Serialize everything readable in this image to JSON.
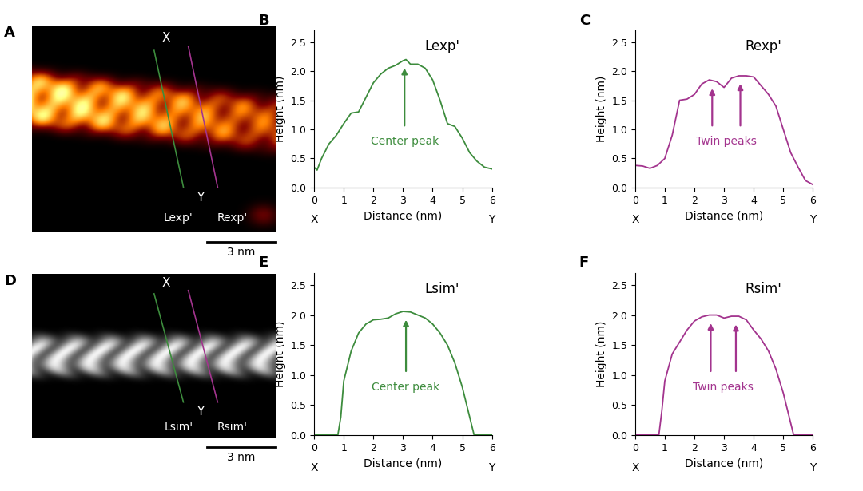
{
  "chart_data": [
    {
      "type": "line",
      "panel": "B",
      "title": "Lexp'",
      "xlabel": "Distance (nm)",
      "ylabel": "Height (nm)",
      "x_start_label": "X",
      "x_end_label": "Y",
      "annotations": [
        {
          "text": "Center peak",
          "peaks": [
            3.05
          ]
        }
      ],
      "x": [
        0,
        0.1,
        0.25,
        0.5,
        0.75,
        1.0,
        1.25,
        1.5,
        1.75,
        2.0,
        2.25,
        2.5,
        2.75,
        3.0,
        3.1,
        3.25,
        3.5,
        3.75,
        4.0,
        4.25,
        4.5,
        4.75,
        5.0,
        5.25,
        5.5,
        5.75,
        6.0
      ],
      "series": [
        {
          "name": "Lexp'",
          "color": "#3d8c3d",
          "values": [
            0.35,
            0.3,
            0.5,
            0.75,
            0.9,
            1.1,
            1.28,
            1.3,
            1.55,
            1.8,
            1.95,
            2.05,
            2.1,
            2.18,
            2.2,
            2.12,
            2.12,
            2.05,
            1.85,
            1.5,
            1.1,
            1.05,
            0.85,
            0.6,
            0.45,
            0.35,
            0.32
          ]
        }
      ],
      "xlim": [
        0,
        6
      ],
      "xticks": [
        0,
        1,
        2,
        3,
        4,
        5,
        6
      ],
      "ylim": [
        0,
        2.7
      ],
      "yticks": [
        {
          "value": 0,
          "label": "0.0"
        },
        {
          "value": 0.5,
          "label": "0.5"
        },
        {
          "value": 1.0,
          "label": "1.0"
        },
        {
          "value": 1.5,
          "label": "1.5"
        },
        {
          "value": 2.0,
          "label": "2.0"
        },
        {
          "value": 2.5,
          "label": "2.5"
        }
      ]
    },
    {
      "type": "line",
      "panel": "C",
      "title": "Rexp'",
      "xlabel": "Distance (nm)",
      "ylabel": "Height (nm)",
      "x_start_label": "X",
      "x_end_label": "Y",
      "annotations": [
        {
          "text": "Twin peaks",
          "peaks": [
            2.6,
            3.55
          ]
        }
      ],
      "x": [
        0,
        0.25,
        0.5,
        0.75,
        1.0,
        1.25,
        1.5,
        1.75,
        2.0,
        2.25,
        2.5,
        2.75,
        3.0,
        3.25,
        3.5,
        3.75,
        4.0,
        4.25,
        4.5,
        4.75,
        5.0,
        5.25,
        5.5,
        5.75,
        6.0
      ],
      "series": [
        {
          "name": "Rexp'",
          "color": "#a3348e",
          "values": [
            0.38,
            0.37,
            0.33,
            0.38,
            0.5,
            0.9,
            1.5,
            1.52,
            1.6,
            1.78,
            1.85,
            1.82,
            1.72,
            1.88,
            1.92,
            1.92,
            1.9,
            1.75,
            1.6,
            1.4,
            1.0,
            0.6,
            0.35,
            0.12,
            0.05
          ]
        }
      ],
      "xlim": [
        0,
        6
      ],
      "xticks": [
        0,
        1,
        2,
        3,
        4,
        5,
        6
      ],
      "ylim": [
        0,
        2.7
      ],
      "yticks": [
        {
          "value": 0,
          "label": "0.0"
        },
        {
          "value": 0.5,
          "label": "0.5"
        },
        {
          "value": 1.0,
          "label": "1.0"
        },
        {
          "value": 1.5,
          "label": "1.5"
        },
        {
          "value": 2.0,
          "label": "2.0"
        },
        {
          "value": 2.5,
          "label": "2.5"
        }
      ]
    },
    {
      "type": "line",
      "panel": "E",
      "title": "Lsim'",
      "xlabel": "Distance (nm)",
      "ylabel": "Height (nm)",
      "x_start_label": "X",
      "x_end_label": "Y",
      "annotations": [
        {
          "text": "Center peak",
          "peaks": [
            3.1
          ]
        }
      ],
      "x": [
        0,
        0.8,
        0.9,
        1.0,
        1.25,
        1.5,
        1.75,
        2.0,
        2.25,
        2.5,
        2.75,
        3.0,
        3.25,
        3.5,
        3.75,
        4.0,
        4.25,
        4.5,
        4.75,
        5.0,
        5.25,
        5.4,
        6.0
      ],
      "series": [
        {
          "name": "Lsim'",
          "color": "#3d8c3d",
          "values": [
            0,
            0,
            0.3,
            0.9,
            1.4,
            1.7,
            1.85,
            1.92,
            1.93,
            1.95,
            2.02,
            2.06,
            2.05,
            2.0,
            1.95,
            1.85,
            1.7,
            1.5,
            1.2,
            0.8,
            0.3,
            0,
            0
          ]
        }
      ],
      "xlim": [
        0,
        6
      ],
      "xticks": [
        0,
        1,
        2,
        3,
        4,
        5,
        6
      ],
      "ylim": [
        0,
        2.7
      ],
      "yticks": [
        {
          "value": 0,
          "label": "0.0"
        },
        {
          "value": 0.5,
          "label": "0.5"
        },
        {
          "value": 1.0,
          "label": "1.0"
        },
        {
          "value": 1.5,
          "label": "1.5"
        },
        {
          "value": 2.0,
          "label": "2.0"
        },
        {
          "value": 2.5,
          "label": "2.5"
        }
      ]
    },
    {
      "type": "line",
      "panel": "F",
      "title": "Rsim'",
      "xlabel": "Distance (nm)",
      "ylabel": "Height (nm)",
      "x_start_label": "X",
      "x_end_label": "Y",
      "annotations": [
        {
          "text": "Twin peaks",
          "peaks": [
            2.55,
            3.4
          ]
        }
      ],
      "x": [
        0,
        0.8,
        0.9,
        1.0,
        1.25,
        1.5,
        1.75,
        2.0,
        2.25,
        2.5,
        2.75,
        3.0,
        3.25,
        3.5,
        3.75,
        4.0,
        4.25,
        4.5,
        4.75,
        5.0,
        5.25,
        5.35,
        6.0
      ],
      "series": [
        {
          "name": "Rsim'",
          "color": "#a3348e",
          "values": [
            0,
            0,
            0.4,
            0.9,
            1.35,
            1.55,
            1.75,
            1.9,
            1.97,
            2.0,
            2.0,
            1.95,
            1.98,
            1.98,
            1.92,
            1.75,
            1.6,
            1.4,
            1.1,
            0.7,
            0.2,
            0,
            0
          ]
        }
      ],
      "xlim": [
        0,
        6
      ],
      "xticks": [
        0,
        1,
        2,
        3,
        4,
        5,
        6
      ],
      "ylim": [
        0,
        2.7
      ],
      "yticks": [
        {
          "value": 0,
          "label": "0.0"
        },
        {
          "value": 0.5,
          "label": "0.5"
        },
        {
          "value": 1.0,
          "label": "1.0"
        },
        {
          "value": 1.5,
          "label": "1.5"
        },
        {
          "value": 2.0,
          "label": "2.0"
        },
        {
          "value": 2.5,
          "label": "2.5"
        }
      ]
    }
  ],
  "images": [
    {
      "panel": "A",
      "ends": [
        "X",
        "Y"
      ],
      "line_labels": [
        "Lexp'",
        "Rexp'"
      ],
      "line_colors": [
        "#3d8c3d",
        "#a3348e"
      ],
      "scale_bar": "3 nm"
    },
    {
      "panel": "D",
      "ends": [
        "X",
        "Y"
      ],
      "line_labels": [
        "Lsim'",
        "Rsim'"
      ],
      "line_colors": [
        "#3d8c3d",
        "#a3348e"
      ],
      "scale_bar": "3 nm"
    }
  ]
}
